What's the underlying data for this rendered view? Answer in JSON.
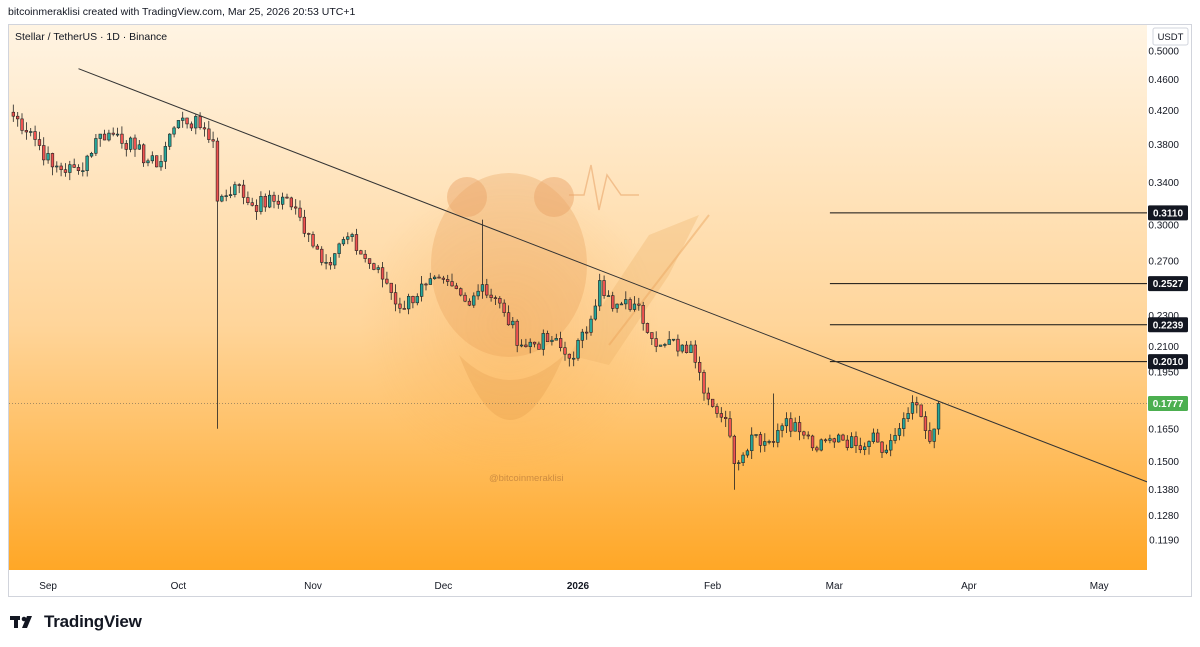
{
  "header": {
    "text": "bitcoinmeraklisi created with TradingView.com, Mar 25, 2026 20:53 UTC+1"
  },
  "symbol": {
    "text": "Stellar / TetherUS · 1D · Binance"
  },
  "currency": "USDT",
  "watermark": "@bitcoinmeraklisi",
  "footer": {
    "brand": "TradingView"
  },
  "colors": {
    "up": "#26a69a",
    "down": "#ef5350",
    "candle_outline": "#222222",
    "current_price": "#4caf50",
    "bg_top": "#fff4e3",
    "bg_bottom": "#ffa726"
  },
  "chart_data": {
    "type": "candlestick",
    "symbol": "Stellar / TetherUS",
    "timeframe": "1D",
    "exchange": "Binance",
    "currency": "USDT",
    "y_axis": {
      "scale": "log",
      "range": [
        0.109,
        0.54
      ],
      "ticks": [
        "0.5000",
        "0.4600",
        "0.4200",
        "0.3800",
        "0.3400",
        "0.3000",
        "0.2700",
        "0.2300",
        "0.2100",
        "0.1950",
        "0.1650",
        "0.1500",
        "0.1380",
        "0.1280",
        "0.1190"
      ]
    },
    "x_axis": {
      "range": [
        "2025-08-23",
        "2026-05-12"
      ],
      "labels": [
        {
          "date": "2025-09-01",
          "text": "Sep",
          "bold": false
        },
        {
          "date": "2025-10-01",
          "text": "Oct",
          "bold": false
        },
        {
          "date": "2025-11-01",
          "text": "Nov",
          "bold": false
        },
        {
          "date": "2025-12-01",
          "text": "Dec",
          "bold": false
        },
        {
          "date": "2026-01-01",
          "text": "2026",
          "bold": true
        },
        {
          "date": "2026-02-01",
          "text": "Feb",
          "bold": false
        },
        {
          "date": "2026-03-01",
          "text": "Mar",
          "bold": false
        },
        {
          "date": "2026-04-01",
          "text": "Apr",
          "bold": false
        },
        {
          "date": "2026-05-01",
          "text": "May",
          "bold": false
        }
      ]
    },
    "trendline": {
      "from": {
        "date": "2025-09-08",
        "price": 0.475
      },
      "to": {
        "date": "2026-05-13",
        "price": 0.1405
      }
    },
    "levels": [
      {
        "price": 0.311,
        "label": "0.3110",
        "start": "2026-02-28"
      },
      {
        "price": 0.2527,
        "label": "0.2527",
        "start": "2026-02-28"
      },
      {
        "price": 0.2239,
        "label": "0.2239",
        "start": "2026-02-28"
      },
      {
        "price": 0.201,
        "label": "0.2010",
        "start": "2026-02-28"
      }
    ],
    "current_price": {
      "price": 0.1777,
      "label": "0.1777"
    },
    "anchors": [
      {
        "date": "2025-08-23",
        "close": 0.418
      },
      {
        "date": "2025-08-28",
        "close": 0.395
      },
      {
        "date": "2025-09-02",
        "close": 0.356
      },
      {
        "date": "2025-09-08",
        "close": 0.352
      },
      {
        "date": "2025-09-13",
        "close": 0.392
      },
      {
        "date": "2025-09-17",
        "close": 0.392
      },
      {
        "date": "2025-09-21",
        "close": 0.375
      },
      {
        "date": "2025-09-26",
        "close": 0.356
      },
      {
        "date": "2025-09-29",
        "close": 0.392
      },
      {
        "date": "2025-10-02",
        "close": 0.411
      },
      {
        "date": "2025-10-07",
        "close": 0.398
      },
      {
        "date": "2025-10-09",
        "close": 0.384
      },
      {
        "date": "2025-10-10",
        "close": 0.322
      },
      {
        "date": "2025-10-14",
        "close": 0.338
      },
      {
        "date": "2025-10-18",
        "close": 0.318
      },
      {
        "date": "2025-10-26",
        "close": 0.325
      },
      {
        "date": "2025-10-31",
        "close": 0.292
      },
      {
        "date": "2025-11-04",
        "close": 0.269
      },
      {
        "date": "2025-11-09",
        "close": 0.29
      },
      {
        "date": "2025-11-13",
        "close": 0.272
      },
      {
        "date": "2025-11-18",
        "close": 0.253
      },
      {
        "date": "2025-11-21",
        "close": 0.235
      },
      {
        "date": "2025-11-27",
        "close": 0.252
      },
      {
        "date": "2025-12-03",
        "close": 0.251
      },
      {
        "date": "2025-12-06",
        "close": 0.24
      },
      {
        "date": "2025-12-10",
        "close": 0.252
      },
      {
        "date": "2025-12-15",
        "close": 0.232
      },
      {
        "date": "2025-12-19",
        "close": 0.211
      },
      {
        "date": "2025-12-26",
        "close": 0.214
      },
      {
        "date": "2025-12-30",
        "close": 0.203
      },
      {
        "date": "2026-01-03",
        "close": 0.219
      },
      {
        "date": "2026-01-06",
        "close": 0.255
      },
      {
        "date": "2026-01-09",
        "close": 0.235
      },
      {
        "date": "2026-01-14",
        "close": 0.238
      },
      {
        "date": "2026-01-20",
        "close": 0.211
      },
      {
        "date": "2026-01-27",
        "close": 0.211
      },
      {
        "date": "2026-01-31",
        "close": 0.18
      },
      {
        "date": "2026-02-04",
        "close": 0.17
      },
      {
        "date": "2026-02-06",
        "close": 0.149
      },
      {
        "date": "2026-02-10",
        "close": 0.162
      },
      {
        "date": "2026-02-14",
        "close": 0.159
      },
      {
        "date": "2026-02-18",
        "close": 0.17
      },
      {
        "date": "2026-02-22",
        "close": 0.162
      },
      {
        "date": "2026-02-25",
        "close": 0.155
      },
      {
        "date": "2026-03-02",
        "close": 0.162
      },
      {
        "date": "2026-03-06",
        "close": 0.157
      },
      {
        "date": "2026-03-10",
        "close": 0.163
      },
      {
        "date": "2026-03-13",
        "close": 0.155
      },
      {
        "date": "2026-03-17",
        "close": 0.17
      },
      {
        "date": "2026-03-20",
        "close": 0.177
      },
      {
        "date": "2026-03-23",
        "close": 0.159
      },
      {
        "date": "2026-03-25",
        "close": 0.1777
      }
    ]
  }
}
